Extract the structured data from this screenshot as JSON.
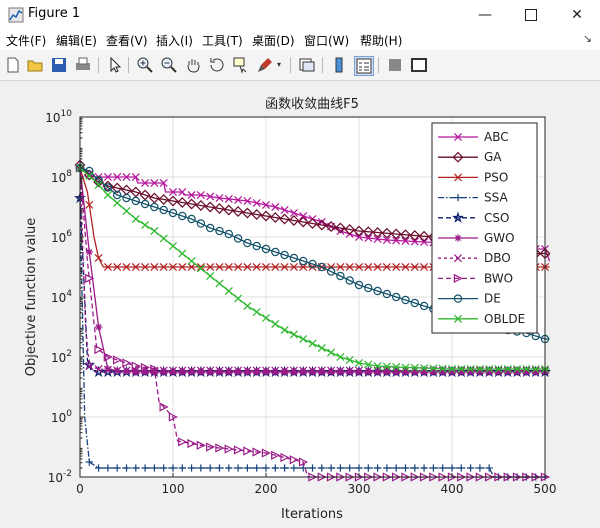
{
  "window": {
    "title": "Figure 1"
  },
  "menu": [
    "文件(F)",
    "编辑(E)",
    "查看(V)",
    "插入(I)",
    "工具(T)",
    "桌面(D)",
    "窗口(W)",
    "帮助(H)"
  ],
  "toolbar_icons": [
    "new-file-icon",
    "open-folder-icon",
    "save-icon",
    "print-icon",
    "pointer-icon",
    "zoom-in-icon",
    "zoom-out-icon",
    "pan-hand-icon",
    "data-cursor-icon",
    "brush-icon",
    "brush-dropdown-icon",
    "link-axes-icon",
    "colorbar-icon",
    "legend-icon",
    "hide-tools-icon",
    "dock-icon"
  ],
  "chart_data": {
    "type": "line",
    "title": "函数收敛曲线F5",
    "xlabel": "Iterations",
    "ylabel": "Objective function value",
    "xlim": [
      0,
      500
    ],
    "ylim_log10": [
      -2,
      10
    ],
    "yscale": "log",
    "xticks": [
      "0",
      "100",
      "200",
      "300",
      "400",
      "500"
    ],
    "yticks_exp": [
      "-2",
      "0",
      "2",
      "4",
      "6",
      "8",
      "10"
    ],
    "grid": true,
    "legend_position": "top-right",
    "series": [
      {
        "name": "ABC",
        "color": "#b5179e",
        "dash": "",
        "marker": "x",
        "points": [
          [
            0,
            8.3
          ],
          [
            5,
            8.2
          ],
          [
            10,
            8.1
          ],
          [
            15,
            8.0
          ],
          [
            20,
            8.0
          ],
          [
            60,
            8.0
          ],
          [
            62,
            7.8
          ],
          [
            90,
            7.8
          ],
          [
            92,
            7.5
          ],
          [
            110,
            7.5
          ],
          [
            112,
            7.4
          ],
          [
            130,
            7.4
          ],
          [
            150,
            7.3
          ],
          [
            180,
            7.2
          ],
          [
            210,
            7.0
          ],
          [
            240,
            6.7
          ],
          [
            260,
            6.5
          ],
          [
            280,
            6.2
          ],
          [
            300,
            6.0
          ],
          [
            330,
            5.9
          ],
          [
            360,
            5.85
          ],
          [
            390,
            5.8
          ],
          [
            420,
            5.8
          ],
          [
            450,
            5.75
          ],
          [
            480,
            5.6
          ],
          [
            500,
            5.6
          ],
          [
            505,
            5.2
          ]
        ]
      },
      {
        "name": "GA",
        "color": "#6a0d2b",
        "dash": "",
        "marker": "diamond",
        "points": [
          [
            0,
            8.4
          ],
          [
            15,
            7.9
          ],
          [
            30,
            7.7
          ],
          [
            45,
            7.6
          ],
          [
            60,
            7.5
          ],
          [
            80,
            7.3
          ],
          [
            100,
            7.2
          ],
          [
            120,
            7.1
          ],
          [
            140,
            7.0
          ],
          [
            160,
            6.9
          ],
          [
            180,
            6.8
          ],
          [
            200,
            6.7
          ],
          [
            220,
            6.6
          ],
          [
            240,
            6.5
          ],
          [
            260,
            6.4
          ],
          [
            280,
            6.3
          ],
          [
            300,
            6.2
          ],
          [
            320,
            6.15
          ],
          [
            340,
            6.1
          ],
          [
            360,
            6.05
          ],
          [
            380,
            6.0
          ],
          [
            400,
            5.9
          ],
          [
            420,
            5.7
          ],
          [
            440,
            5.55
          ],
          [
            460,
            5.5
          ],
          [
            480,
            5.45
          ],
          [
            500,
            5.45
          ],
          [
            505,
            5.4
          ]
        ]
      },
      {
        "name": "PSO",
        "color": "#b22222",
        "dash": "",
        "marker": "x",
        "points": [
          [
            0,
            8.3
          ],
          [
            8,
            7.5
          ],
          [
            15,
            6.0
          ],
          [
            20,
            5.3
          ],
          [
            25,
            5.0
          ],
          [
            60,
            5.0
          ],
          [
            150,
            5.0
          ],
          [
            300,
            5.0
          ],
          [
            450,
            5.0
          ],
          [
            505,
            5.0
          ]
        ]
      },
      {
        "name": "SSA",
        "color": "#16417c",
        "dash": "6,2,1.5,2",
        "marker": "plus",
        "points": [
          [
            0,
            7.3
          ],
          [
            5,
            0.0
          ],
          [
            10,
            -1.5
          ],
          [
            20,
            -1.7
          ],
          [
            300,
            -1.7
          ],
          [
            440,
            -1.7
          ],
          [
            445,
            -2.0
          ],
          [
            505,
            -2.0
          ]
        ]
      },
      {
        "name": "CSO",
        "color": "#0d1b6e",
        "dash": "5,3",
        "marker": "star",
        "points": [
          [
            0,
            7.3
          ],
          [
            5,
            4.0
          ],
          [
            8,
            1.9
          ],
          [
            12,
            1.55
          ],
          [
            20,
            1.5
          ],
          [
            500,
            1.5
          ],
          [
            505,
            1.5
          ]
        ]
      },
      {
        "name": "GWO",
        "color": "#9b1b88",
        "dash": "",
        "marker": "asterisk",
        "points": [
          [
            0,
            8.3
          ],
          [
            10,
            5.5
          ],
          [
            20,
            3.0
          ],
          [
            30,
            1.6
          ],
          [
            40,
            1.55
          ],
          [
            60,
            1.5
          ],
          [
            505,
            1.5
          ]
        ]
      },
      {
        "name": "DBO",
        "color": "#9b1b88",
        "dash": "3,3",
        "marker": "x",
        "points": [
          [
            0,
            8.3
          ],
          [
            6,
            3.0
          ],
          [
            10,
            1.7
          ],
          [
            20,
            1.6
          ],
          [
            40,
            1.55
          ],
          [
            505,
            1.55
          ]
        ]
      },
      {
        "name": "BWO",
        "color": "#9b1b88",
        "dash": "5,3",
        "marker": "triangle-right",
        "points": [
          [
            0,
            8.3
          ],
          [
            8,
            5.2
          ],
          [
            18,
            2.3
          ],
          [
            30,
            2.0
          ],
          [
            40,
            1.9
          ],
          [
            60,
            1.7
          ],
          [
            80,
            1.6
          ],
          [
            85,
            0.5
          ],
          [
            100,
            0.0
          ],
          [
            105,
            -0.8
          ],
          [
            140,
            -1.0
          ],
          [
            200,
            -1.2
          ],
          [
            240,
            -1.5
          ],
          [
            245,
            -2.0
          ],
          [
            505,
            -2.0
          ]
        ]
      },
      {
        "name": "DE",
        "color": "#15536b",
        "dash": "",
        "marker": "circle",
        "points": [
          [
            0,
            8.3
          ],
          [
            10,
            8.2
          ],
          [
            20,
            7.9
          ],
          [
            40,
            7.4
          ],
          [
            60,
            7.2
          ],
          [
            80,
            7.0
          ],
          [
            100,
            6.8
          ],
          [
            120,
            6.6
          ],
          [
            140,
            6.3
          ],
          [
            160,
            6.1
          ],
          [
            180,
            5.8
          ],
          [
            200,
            5.6
          ],
          [
            220,
            5.4
          ],
          [
            240,
            5.2
          ],
          [
            260,
            5.0
          ],
          [
            280,
            4.7
          ],
          [
            300,
            4.4
          ],
          [
            320,
            4.2
          ],
          [
            340,
            4.0
          ],
          [
            360,
            3.8
          ],
          [
            380,
            3.6
          ],
          [
            400,
            3.4
          ],
          [
            420,
            3.2
          ],
          [
            440,
            3.0
          ],
          [
            460,
            2.9
          ],
          [
            480,
            2.8
          ],
          [
            500,
            2.6
          ],
          [
            505,
            2.6
          ]
        ]
      },
      {
        "name": "OBLDE",
        "color": "#2eb82e",
        "dash": "",
        "marker": "x",
        "points": [
          [
            0,
            8.3
          ],
          [
            15,
            7.9
          ],
          [
            30,
            7.4
          ],
          [
            45,
            7.0
          ],
          [
            60,
            6.6
          ],
          [
            80,
            6.2
          ],
          [
            100,
            5.7
          ],
          [
            120,
            5.2
          ],
          [
            140,
            4.7
          ],
          [
            160,
            4.2
          ],
          [
            180,
            3.7
          ],
          [
            200,
            3.3
          ],
          [
            220,
            2.9
          ],
          [
            240,
            2.6
          ],
          [
            260,
            2.3
          ],
          [
            280,
            2.0
          ],
          [
            300,
            1.8
          ],
          [
            320,
            1.7
          ],
          [
            350,
            1.65
          ],
          [
            400,
            1.6
          ],
          [
            450,
            1.6
          ],
          [
            505,
            1.6
          ]
        ]
      }
    ]
  }
}
